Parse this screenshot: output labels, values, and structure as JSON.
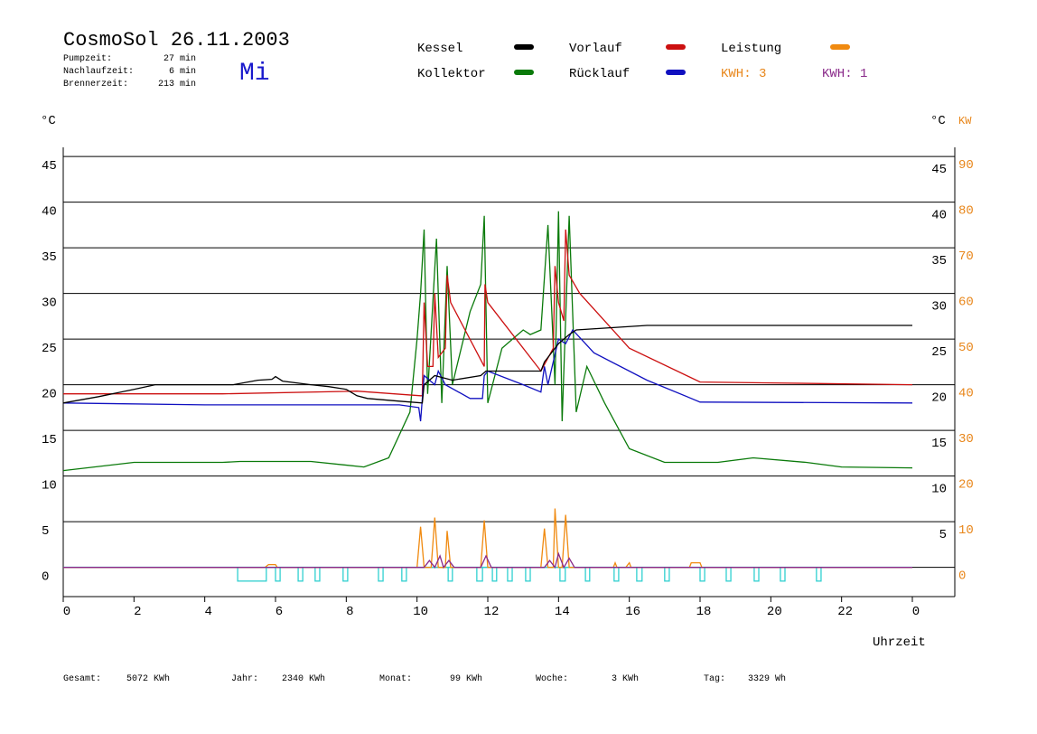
{
  "header": {
    "title": "CosmoSol 26.11.2003",
    "day": "Mi",
    "stats": [
      {
        "label": "Pumpzeit:",
        "value": "27 min"
      },
      {
        "label": "Nachlaufzeit:",
        "value": "6 min"
      },
      {
        "label": "Brennerzeit:",
        "value": "213 min"
      }
    ]
  },
  "footer": [
    {
      "label": "Gesamt:",
      "value": "5072 KWh"
    },
    {
      "label": "Jahr:",
      "value": "2340 KWh"
    },
    {
      "label": "Monat:",
      "value": "99 KWh"
    },
    {
      "label": "Woche:",
      "value": "3 KWh"
    },
    {
      "label": "Tag:",
      "value": "3329 Wh"
    }
  ],
  "chart_data": {
    "type": "line",
    "y_unit": "°C",
    "y2_unit": "KW",
    "x_label": "Uhrzeit",
    "kwh_label": "KWH: 3",
    "kwh_color": "#e8861a",
    "xlim": [
      0,
      25.2
    ],
    "xticks": [
      0,
      2,
      4,
      6,
      8,
      10,
      12,
      14,
      16,
      18,
      20,
      22,
      {
        "value": 24,
        "label": "0"
      }
    ],
    "ylim": [
      -3.2,
      46
    ],
    "yticks": [
      0,
      5,
      10,
      15,
      20,
      25,
      30,
      35,
      40,
      45
    ],
    "right_yticks": [
      5,
      10,
      15,
      20,
      25,
      30,
      35,
      40,
      45
    ],
    "y2lim": [
      -6.4,
      92
    ],
    "y2ticks": [
      0,
      10,
      20,
      30,
      40,
      50,
      60,
      70,
      80,
      90
    ],
    "grid": true,
    "series": [
      {
        "name": "Kessel",
        "color": "#000000",
        "x": [
          0,
          1,
          2,
          2.6,
          4.8,
          5.5,
          5.9,
          6.0,
          6.2,
          7,
          7.5,
          8,
          8.3,
          8.6,
          9.5,
          10.15,
          10.2,
          10.5,
          11.0,
          11.8,
          11.95,
          13.5,
          13.6,
          14.0,
          14.3,
          14.5,
          16.5,
          24
        ],
        "values": [
          18.0,
          18.7,
          19.5,
          20.0,
          20.0,
          20.5,
          20.6,
          20.9,
          20.4,
          20.0,
          19.8,
          19.5,
          18.8,
          18.5,
          18.2,
          18.0,
          20.0,
          21.0,
          20.5,
          21.0,
          21.5,
          21.5,
          22.5,
          24.5,
          25.5,
          26.0,
          26.5,
          26.5
        ]
      },
      {
        "name": "Kollektor",
        "color": "#0a7a0a",
        "x": [
          0,
          2,
          4.5,
          5,
          7,
          8.5,
          9.2,
          9.8,
          10,
          10.1,
          10.2,
          10.3,
          10.55,
          10.7,
          10.85,
          11,
          11.5,
          11.8,
          11.9,
          12,
          12.4,
          12.7,
          13,
          13.2,
          13.5,
          13.7,
          13.9,
          14,
          14.1,
          14.3,
          14.5,
          14.8,
          15.3,
          16,
          17,
          18.5,
          19.5,
          21,
          22,
          24
        ],
        "values": [
          10.6,
          11.5,
          11.5,
          11.6,
          11.6,
          11,
          12,
          17,
          25,
          30,
          37,
          19,
          36,
          18,
          33,
          20,
          28,
          31,
          38.5,
          18,
          24,
          25,
          26,
          25.5,
          26,
          37.5,
          20,
          39,
          16,
          38.5,
          17,
          22,
          18,
          13,
          11.5,
          11.5,
          12,
          11.5,
          11,
          10.9
        ]
      },
      {
        "name": "Vorlauf",
        "color": "#cc1010",
        "x": [
          0,
          4.5,
          8.3,
          10.1,
          10.15,
          10.2,
          10.3,
          10.45,
          10.5,
          10.6,
          10.8,
          10.85,
          10.95,
          11.9,
          11.92,
          12.0,
          13.5,
          13.85,
          13.9,
          14.0,
          14.15,
          14.2,
          14.3,
          14.6,
          16,
          18,
          20,
          24
        ],
        "values": [
          19.0,
          19.0,
          19.3,
          18.8,
          18.8,
          29,
          22,
          22,
          30,
          23,
          24,
          32,
          29,
          22,
          31,
          29,
          21.5,
          24,
          33,
          29,
          27,
          37,
          32,
          30,
          24,
          20.3,
          20.2,
          20.0
        ]
      },
      {
        "name": "Rücklauf",
        "color": "#1010c0",
        "x": [
          0,
          4,
          9.5,
          10.05,
          10.1,
          10.2,
          10.5,
          10.6,
          10.8,
          11.5,
          11.85,
          11.9,
          12.0,
          13.0,
          13.5,
          13.6,
          13.7,
          14.0,
          14.2,
          14.4,
          15,
          16.5,
          18,
          24
        ],
        "values": [
          18,
          17.8,
          17.8,
          17.5,
          16,
          21,
          20,
          21.5,
          20,
          18.5,
          18.5,
          21,
          21.5,
          20,
          19.2,
          22,
          20,
          25,
          24.5,
          26,
          23.5,
          20.5,
          18.1,
          18.0
        ]
      },
      {
        "name": "Leistung",
        "color": "#f08a10",
        "axis": "y2",
        "x": [
          0,
          5.7,
          5.8,
          6.0,
          6.05,
          10.0,
          10.1,
          10.2,
          10.4,
          10.5,
          10.6,
          10.8,
          10.85,
          10.95,
          11.8,
          11.9,
          12.0,
          13.5,
          13.6,
          13.7,
          13.85,
          13.9,
          14.0,
          14.1,
          14.2,
          14.3,
          15.55,
          15.6,
          15.65,
          15.9,
          16,
          16.05,
          17.7,
          17.75,
          18.0,
          18.05,
          24
        ],
        "values": [
          0,
          0,
          0.6,
          0.6,
          0,
          0,
          8.9,
          0,
          0,
          10.9,
          0,
          0,
          8,
          0,
          0,
          10.3,
          0,
          0,
          8.5,
          0,
          0,
          12.9,
          0,
          0,
          11.5,
          0,
          0,
          1,
          0,
          0,
          1,
          0,
          0,
          1,
          1,
          0,
          0
        ]
      },
      {
        "name": "KWH: 1",
        "color": "#8a2a8a",
        "axis": "y2",
        "x": [
          0,
          10.2,
          10.35,
          10.5,
          10.65,
          10.75,
          10.9,
          11.05,
          11.8,
          11.95,
          12.1,
          13.6,
          13.75,
          13.9,
          14.0,
          14.15,
          14.3,
          14.45,
          24
        ],
        "values": [
          0,
          0,
          1.5,
          0,
          2.5,
          0,
          1.5,
          0,
          0,
          2.5,
          0,
          0,
          1.5,
          0,
          3,
          0,
          2,
          0,
          0
        ]
      }
    ],
    "pump": {
      "color": "#30d0d0",
      "level": 0,
      "depth": -1.5,
      "intervals": [
        [
          4.93,
          5.74
        ],
        [
          6.0,
          6.13
        ],
        [
          6.64,
          6.77
        ],
        [
          7.12,
          7.25
        ],
        [
          7.91,
          8.04
        ],
        [
          8.91,
          9.04
        ],
        [
          9.57,
          9.7
        ],
        [
          10.88,
          11.0
        ],
        [
          11.69,
          11.85
        ],
        [
          12.13,
          12.25
        ],
        [
          12.56,
          12.69
        ],
        [
          13.07,
          13.2
        ],
        [
          14.04,
          14.19
        ],
        [
          14.76,
          14.88
        ],
        [
          15.57,
          15.7
        ],
        [
          16.21,
          16.36
        ],
        [
          17.0,
          17.13
        ],
        [
          18.0,
          18.13
        ],
        [
          18.74,
          18.87
        ],
        [
          19.53,
          19.66
        ],
        [
          20.27,
          20.4
        ],
        [
          21.29,
          21.42
        ]
      ]
    }
  }
}
